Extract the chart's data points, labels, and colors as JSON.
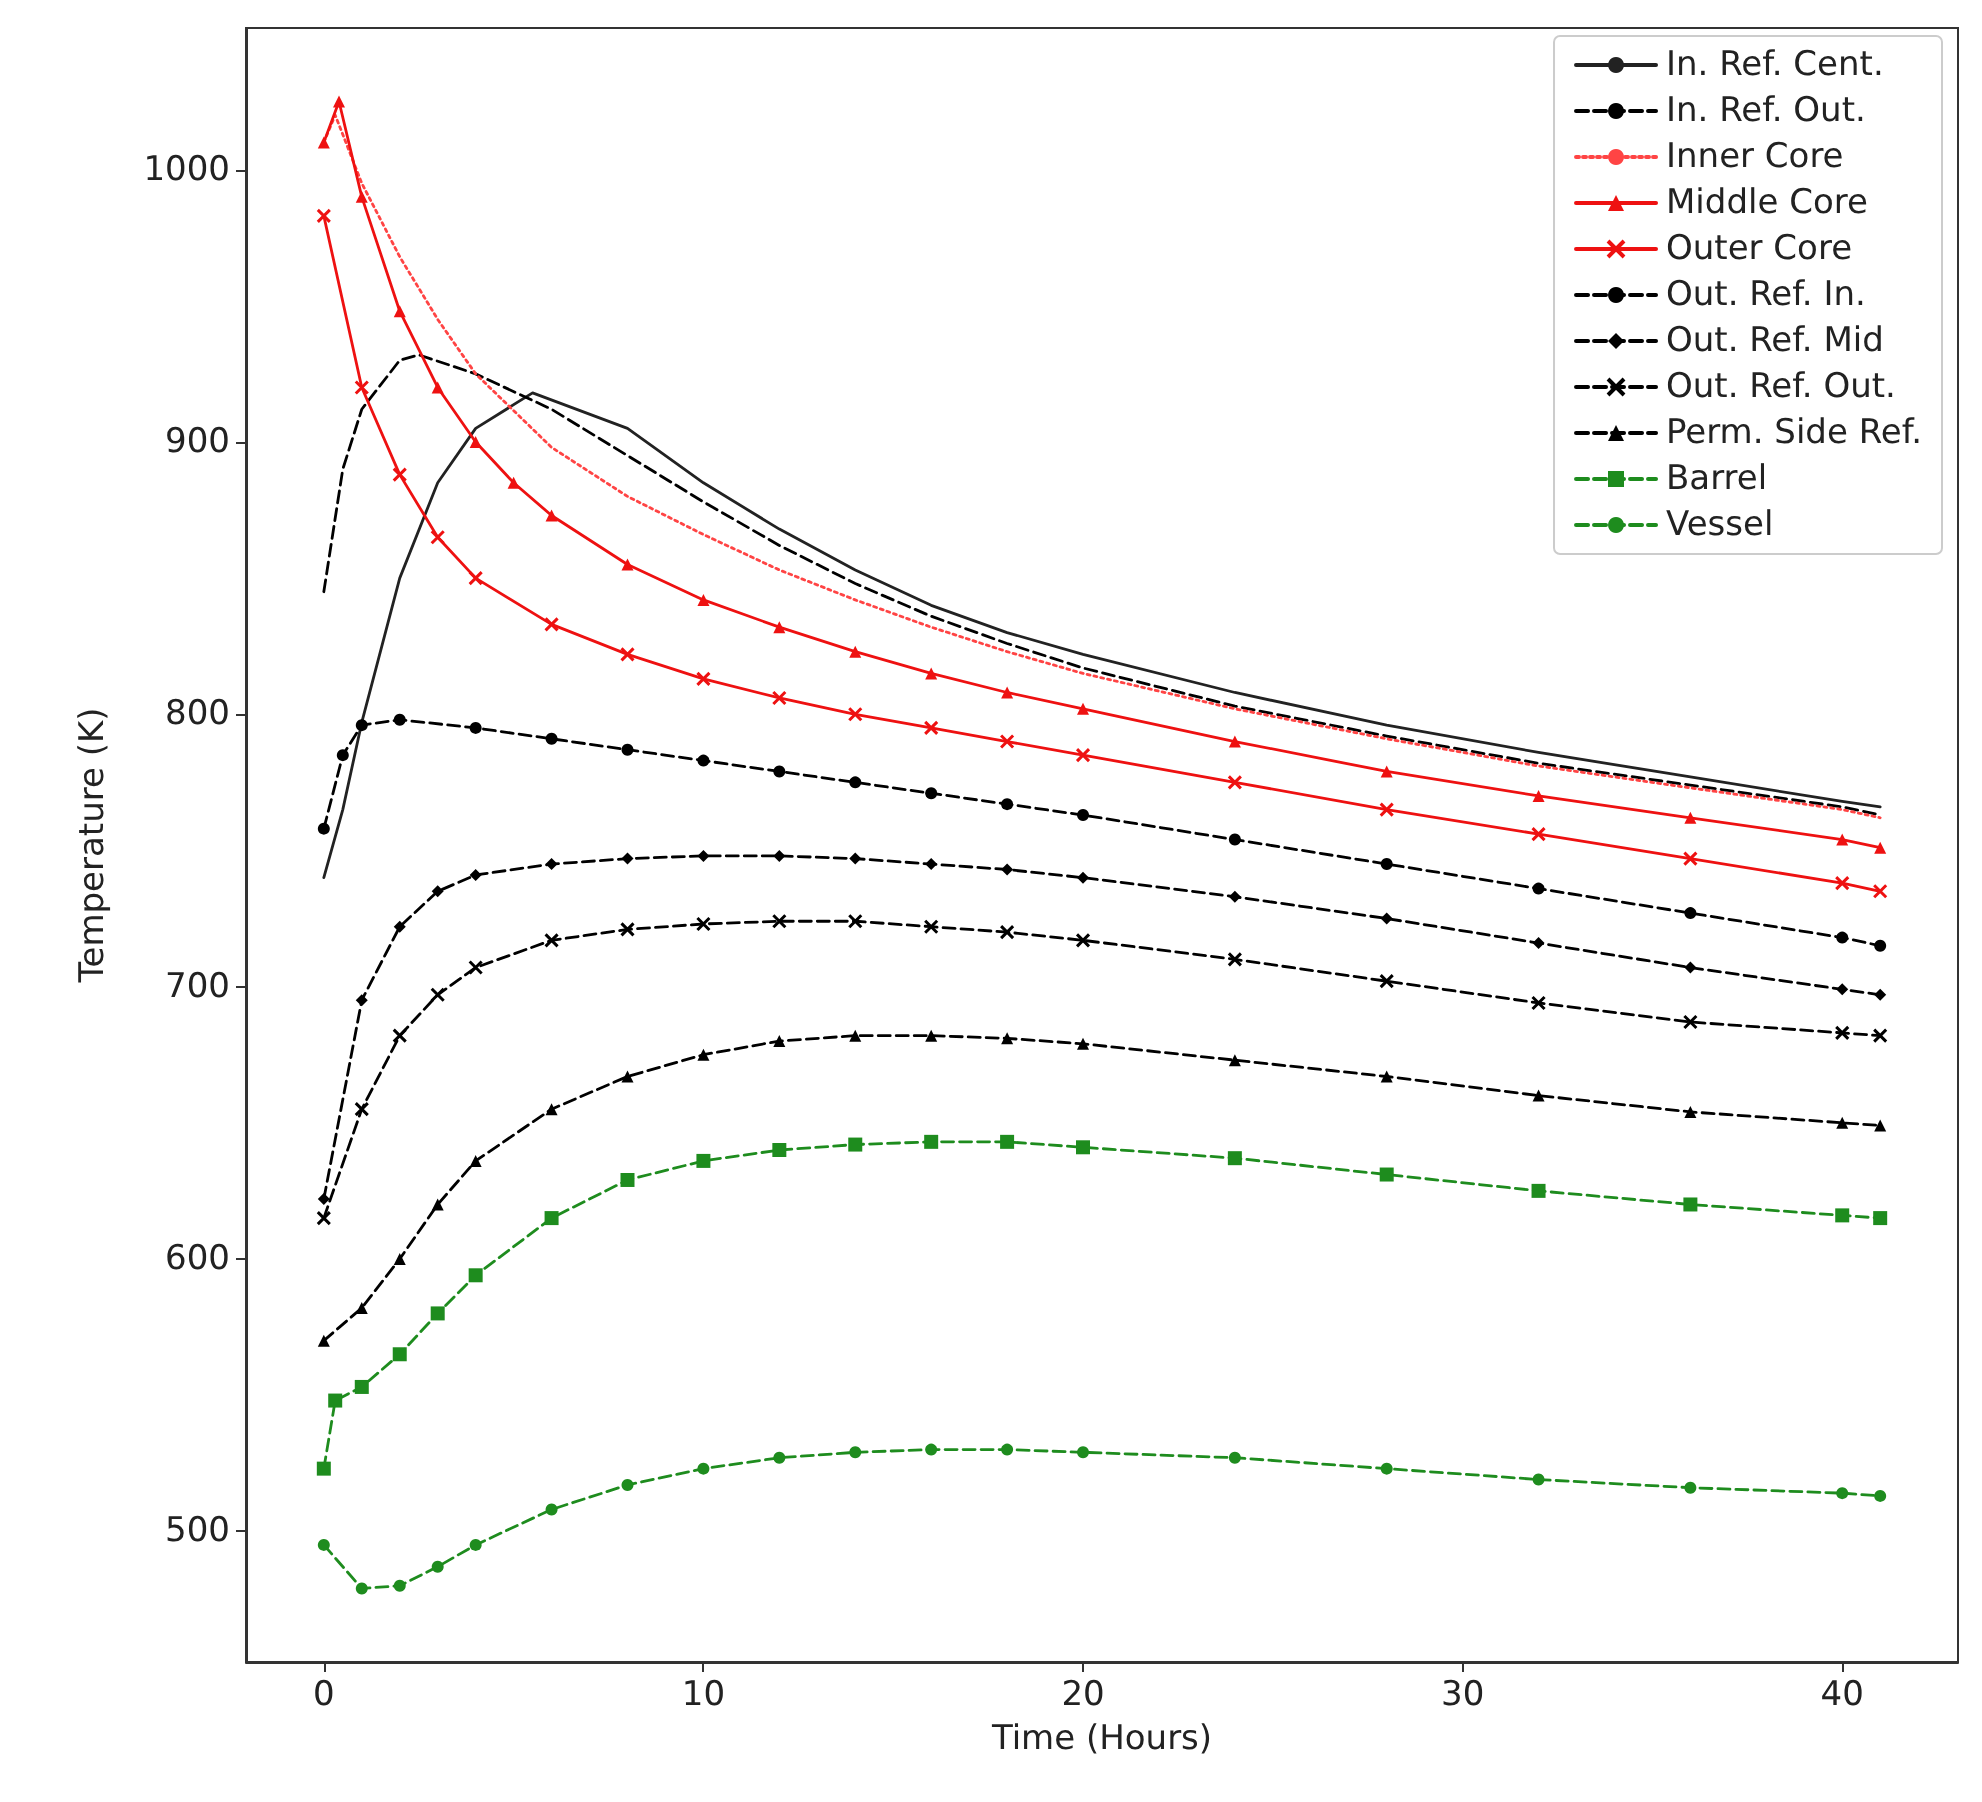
{
  "chart_data": {
    "type": "line",
    "xlabel": "Time (Hours)",
    "ylabel": "Temperature (K)",
    "xlim": [
      -2.05,
      43.05
    ],
    "ylim": [
      452,
      1052
    ],
    "xticks": [
      0,
      10,
      20,
      30,
      40
    ],
    "yticks": [
      500,
      600,
      700,
      800,
      900,
      1000
    ],
    "grid": false,
    "legend": "top right",
    "series": [
      {
        "name": "In. Ref. Cent.",
        "color": "#222222",
        "marker": "none",
        "line_style": "solid",
        "x": [
          0,
          0.5,
          1,
          2,
          3,
          4,
          5.5,
          8,
          10,
          12,
          14,
          16,
          18,
          20,
          24,
          28,
          32,
          36,
          40,
          41
        ],
        "values": [
          740,
          765,
          797,
          850,
          885,
          905,
          918,
          905,
          885,
          868,
          853,
          840,
          830,
          822,
          808,
          796,
          786,
          777,
          768,
          766
        ]
      },
      {
        "name": "In. Ref. Out.",
        "color": "#000000",
        "marker": "none",
        "line_style": "dashed",
        "x": [
          0,
          0.5,
          1,
          2,
          2.5,
          4,
          6,
          8,
          10,
          12,
          14,
          16,
          18,
          20,
          24,
          28,
          32,
          36,
          40,
          41
        ],
        "values": [
          845,
          890,
          912,
          930,
          932,
          925,
          912,
          895,
          878,
          862,
          848,
          836,
          826,
          817,
          803,
          792,
          782,
          774,
          766,
          763
        ]
      },
      {
        "name": "Inner Core",
        "color": "#ff4444",
        "marker": "none",
        "line_style": "dotted",
        "x": [
          0,
          0.3,
          1,
          2,
          3,
          4,
          6,
          8,
          10,
          12,
          14,
          16,
          18,
          20,
          24,
          28,
          32,
          36,
          40,
          41
        ],
        "values": [
          1010,
          1020,
          995,
          968,
          945,
          925,
          898,
          880,
          866,
          853,
          842,
          832,
          823,
          815,
          802,
          791,
          781,
          773,
          765,
          762
        ]
      },
      {
        "name": "Middle Core",
        "color": "#ee1111",
        "marker": "triangle",
        "line_style": "solid",
        "x": [
          0,
          0.4,
          1,
          2,
          3,
          4,
          5,
          6,
          8,
          10,
          12,
          14,
          16,
          18,
          20,
          24,
          28,
          32,
          36,
          40,
          41
        ],
        "values": [
          1010,
          1025,
          990,
          948,
          920,
          900,
          885,
          873,
          855,
          842,
          832,
          823,
          815,
          808,
          802,
          790,
          779,
          770,
          762,
          754,
          751
        ]
      },
      {
        "name": "Outer Core",
        "color": "#ee1111",
        "marker": "cross",
        "line_style": "solid",
        "x": [
          0,
          1,
          2,
          3,
          4,
          6,
          8,
          10,
          12,
          14,
          16,
          18,
          20,
          24,
          28,
          32,
          36,
          40,
          41
        ],
        "values": [
          983,
          920,
          888,
          865,
          850,
          833,
          822,
          813,
          806,
          800,
          795,
          790,
          785,
          775,
          765,
          756,
          747,
          738,
          735
        ]
      },
      {
        "name": "Out. Ref. In.",
        "color": "#000000",
        "marker": "circle",
        "line_style": "dashed",
        "x": [
          0,
          0.5,
          1,
          2,
          4,
          6,
          8,
          10,
          12,
          14,
          16,
          18,
          20,
          24,
          28,
          32,
          36,
          40,
          41
        ],
        "values": [
          758,
          785,
          796,
          798,
          795,
          791,
          787,
          783,
          779,
          775,
          771,
          767,
          763,
          754,
          745,
          736,
          727,
          718,
          715
        ]
      },
      {
        "name": "Out. Ref. Mid",
        "color": "#000000",
        "marker": "diamond",
        "line_style": "dashed",
        "x": [
          0,
          1,
          2,
          3,
          4,
          6,
          8,
          10,
          12,
          14,
          16,
          18,
          20,
          24,
          28,
          32,
          36,
          40,
          41
        ],
        "values": [
          622,
          695,
          722,
          735,
          741,
          745,
          747,
          748,
          748,
          747,
          745,
          743,
          740,
          733,
          725,
          716,
          707,
          699,
          697
        ]
      },
      {
        "name": "Out. Ref. Out.",
        "color": "#000000",
        "marker": "cross",
        "line_style": "dashed",
        "x": [
          0,
          1,
          2,
          3,
          4,
          6,
          8,
          10,
          12,
          14,
          16,
          18,
          20,
          24,
          28,
          32,
          36,
          40,
          41
        ],
        "values": [
          615,
          655,
          682,
          697,
          707,
          717,
          721,
          723,
          724,
          724,
          722,
          720,
          717,
          710,
          702,
          694,
          687,
          683,
          682
        ]
      },
      {
        "name": "Perm. Side Ref.",
        "color": "#000000",
        "marker": "triangle",
        "line_style": "dashed",
        "x": [
          0,
          1,
          2,
          3,
          4,
          6,
          8,
          10,
          12,
          14,
          16,
          18,
          20,
          24,
          28,
          32,
          36,
          40,
          41
        ],
        "values": [
          570,
          582,
          600,
          620,
          636,
          655,
          667,
          675,
          680,
          682,
          682,
          681,
          679,
          673,
          667,
          660,
          654,
          650,
          649
        ]
      },
      {
        "name": "Barrel",
        "color": "#1e8c1e",
        "marker": "square",
        "line_style": "dashed",
        "x": [
          0,
          0.3,
          1,
          2,
          3,
          4,
          6,
          8,
          10,
          12,
          14,
          16,
          18,
          20,
          24,
          28,
          32,
          36,
          40,
          41
        ],
        "values": [
          523,
          548,
          553,
          565,
          580,
          594,
          615,
          629,
          636,
          640,
          642,
          643,
          643,
          641,
          637,
          631,
          625,
          620,
          616,
          615
        ]
      },
      {
        "name": "Vessel",
        "color": "#1e8c1e",
        "marker": "circle",
        "line_style": "dashed",
        "x": [
          0,
          1,
          2,
          3,
          4,
          6,
          8,
          10,
          12,
          14,
          16,
          18,
          20,
          24,
          28,
          32,
          36,
          40,
          41
        ],
        "values": [
          495,
          479,
          480,
          487,
          495,
          508,
          517,
          523,
          527,
          529,
          530,
          530,
          529,
          527,
          523,
          519,
          516,
          514,
          513
        ]
      }
    ]
  }
}
